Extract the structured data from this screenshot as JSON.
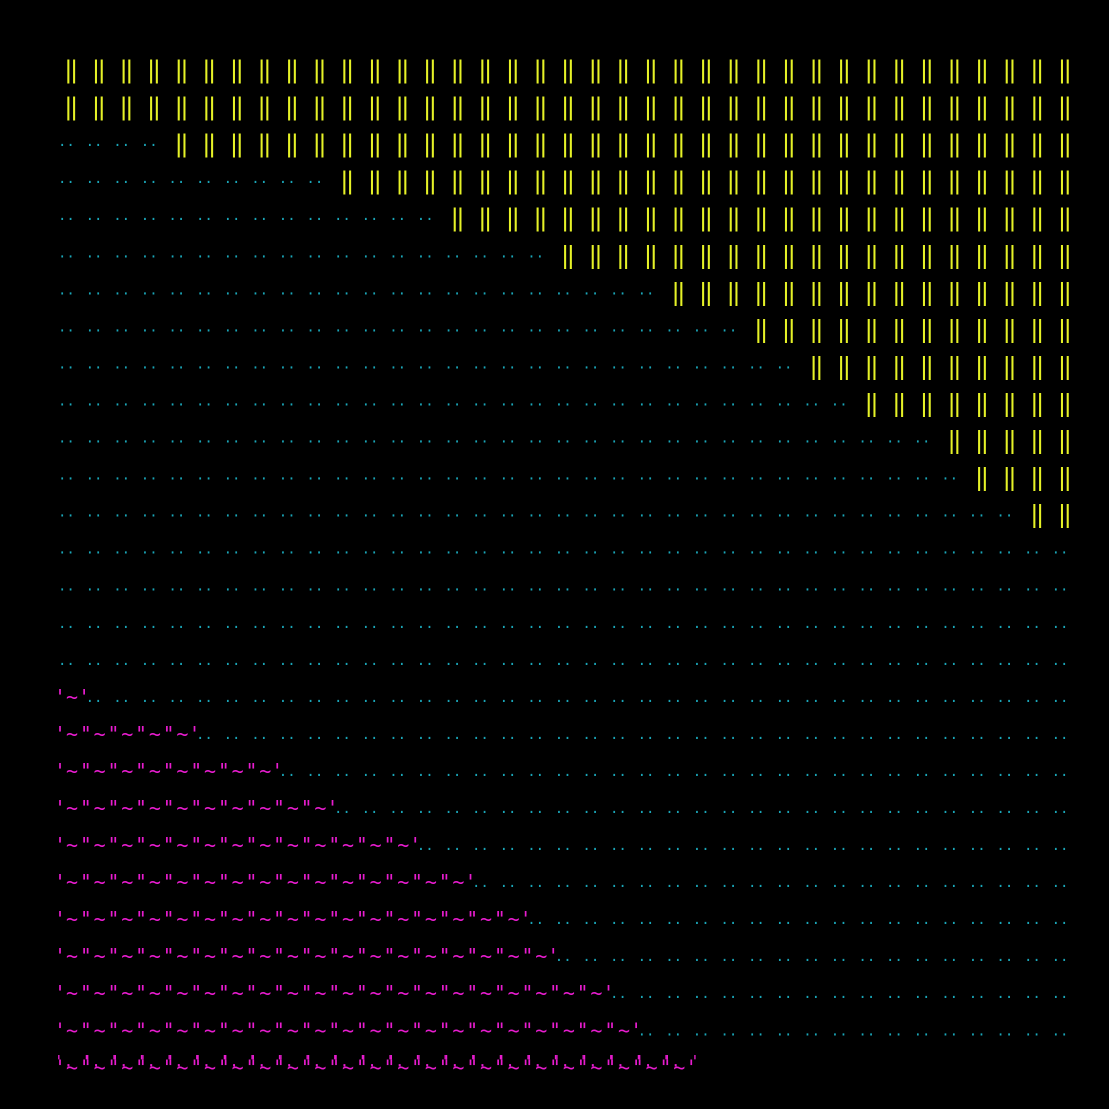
{
  "background": "#000000",
  "glyphs": {
    "bar": "‖",
    "dots": "··",
    "wave": "'~'",
    "wave_cap": "'. '"
  },
  "colors": {
    "bar": "#e6f227",
    "dots": "#1aa6b8",
    "wave": "#e81ccf"
  },
  "grid": {
    "rows": 28,
    "cols": 37
  },
  "bars_start_col_per_row": [
    0,
    0,
    4,
    10,
    14,
    18,
    22,
    25,
    27,
    29,
    32,
    33,
    35
  ],
  "wave_cells_per_row": [
    1,
    5,
    8,
    10,
    13,
    15,
    17,
    18,
    20,
    21,
    23
  ]
}
